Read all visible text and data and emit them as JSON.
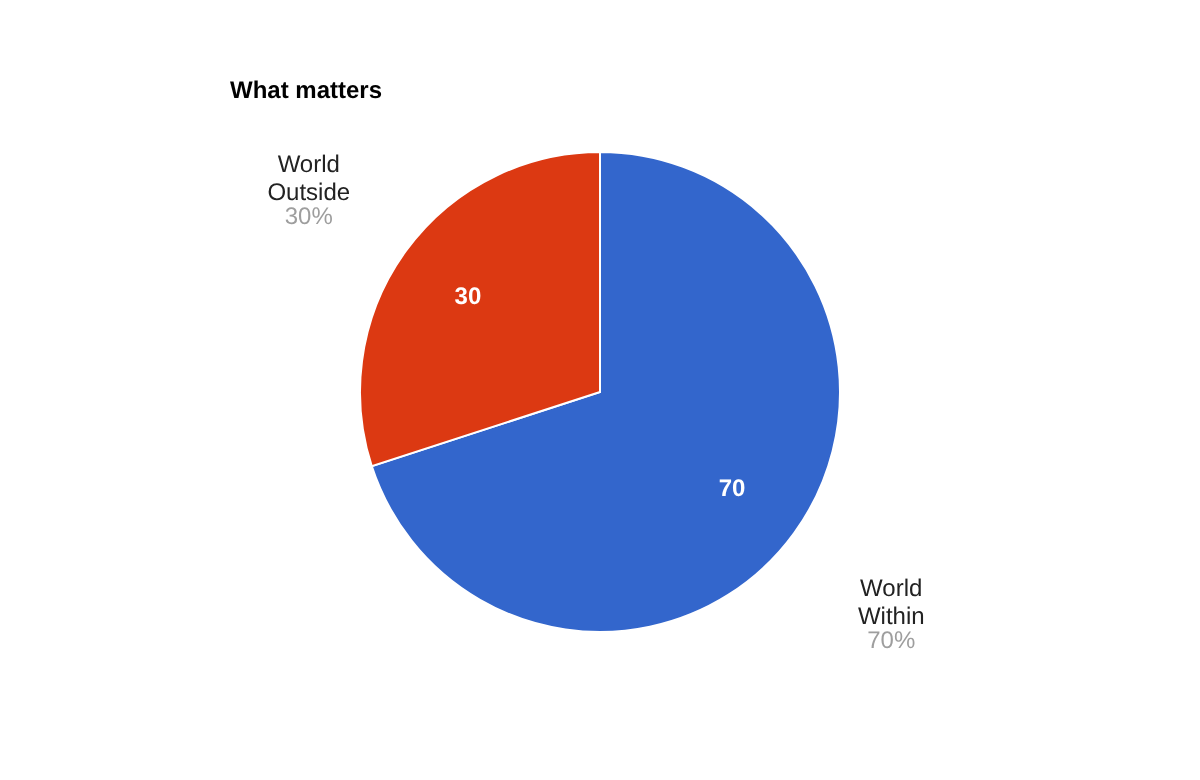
{
  "chart_data": {
    "type": "pie",
    "title": "What matters",
    "categories": [
      "World Within",
      "World Outside"
    ],
    "values": [
      70,
      30
    ],
    "colors": [
      "#3366cc",
      "#dc3912"
    ],
    "data_labels": true,
    "legend": false,
    "annotations": [
      {
        "text": "70%",
        "x": "World Within"
      },
      {
        "text": "30%",
        "x": "World Outside"
      }
    ]
  }
}
